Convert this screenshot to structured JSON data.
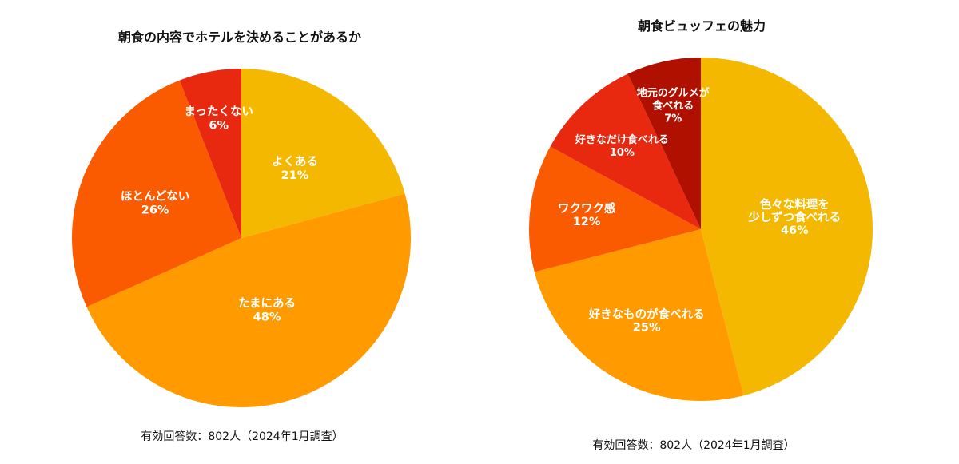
{
  "chart_data": [
    {
      "type": "pie",
      "title": "朝食の内容でホテルを決めることがあるか",
      "note": "有効回答数：802人（2024年1月調査）",
      "slices": [
        {
          "lines": [
            "よくある"
          ],
          "value": 21,
          "pct_label": "21%",
          "color": "#F5B800"
        },
        {
          "lines": [
            "たまにある"
          ],
          "value": 48,
          "pct_label": "48%",
          "color": "#FF9B00"
        },
        {
          "lines": [
            "ほとんどない"
          ],
          "value": 26,
          "pct_label": "26%",
          "color": "#FA5A00"
        },
        {
          "lines": [
            "まったくない"
          ],
          "value": 6,
          "pct_label": "6%",
          "color": "#E8280F"
        }
      ]
    },
    {
      "type": "pie",
      "title": "朝食ビュッフェの魅力",
      "note": "有効回答数：802人（2024年1月調査）",
      "slices": [
        {
          "lines": [
            "色々な料理を",
            "少しずつ食べれる"
          ],
          "value": 46,
          "pct_label": "46%",
          "color": "#F5B800"
        },
        {
          "lines": [
            "好きなものが食べれる"
          ],
          "value": 25,
          "pct_label": "25%",
          "color": "#FF9B00"
        },
        {
          "lines": [
            "ワクワク感"
          ],
          "value": 12,
          "pct_label": "12%",
          "color": "#FA5A00"
        },
        {
          "lines": [
            "好きなだけ食べれる"
          ],
          "value": 10,
          "pct_label": "10%",
          "color": "#E8280F"
        },
        {
          "lines": [
            "地元のグルメが",
            "食べれる"
          ],
          "value": 7,
          "pct_label": "7%",
          "color": "#B01000"
        }
      ]
    }
  ]
}
